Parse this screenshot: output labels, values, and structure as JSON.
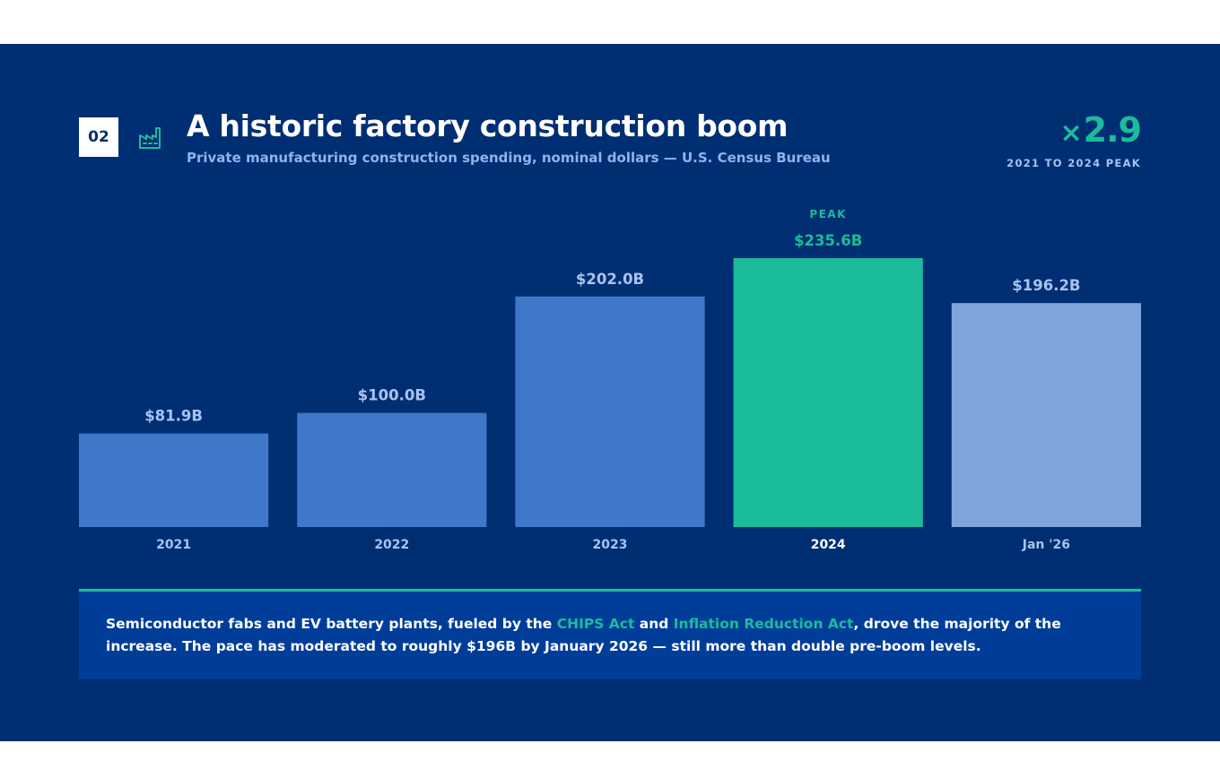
{
  "header": {
    "badge": "02",
    "icon": "factory-icon",
    "title": "A historic factory construction boom",
    "subtitle": "Private manufacturing construction spending, nominal dollars — U.S. Census Bureau",
    "multiplier_sign": "×",
    "multiplier_value": "2.9",
    "multiplier_caption": "2021 TO 2024 PEAK"
  },
  "chart_data": {
    "type": "bar",
    "categories": [
      "2021",
      "2022",
      "2023",
      "2024",
      "Jan '26"
    ],
    "values": [
      81.9,
      100.0,
      202.0,
      235.6,
      196.2
    ],
    "value_labels": [
      "$81.9B",
      "$100.0B",
      "$202.0B",
      "$235.6B",
      "$196.2B"
    ],
    "unit": "$B",
    "ylim": [
      0,
      235.6
    ],
    "grid": false,
    "highlight_index": 3,
    "highlight_annotation": "PEAK",
    "colors": {
      "default": "#3f78c9",
      "highlight": "#1bbc9b",
      "latest": "#7ea6dc",
      "value_label": "#a9c3ee",
      "highlight_label": "#1bbc9b",
      "category_label": "#a9c3ee",
      "highlight_category_label": "#ffffff"
    }
  },
  "note": {
    "before": "Semiconductor fabs and EV battery plants, fueled by the ",
    "highlight1": "CHIPS Act",
    "between": " and ",
    "highlight2": "Inflation Reduction Act",
    "after": ", drove the majority of the increase. The pace has moderated to roughly $196B by January 2026 — still more than double pre-boom levels."
  }
}
